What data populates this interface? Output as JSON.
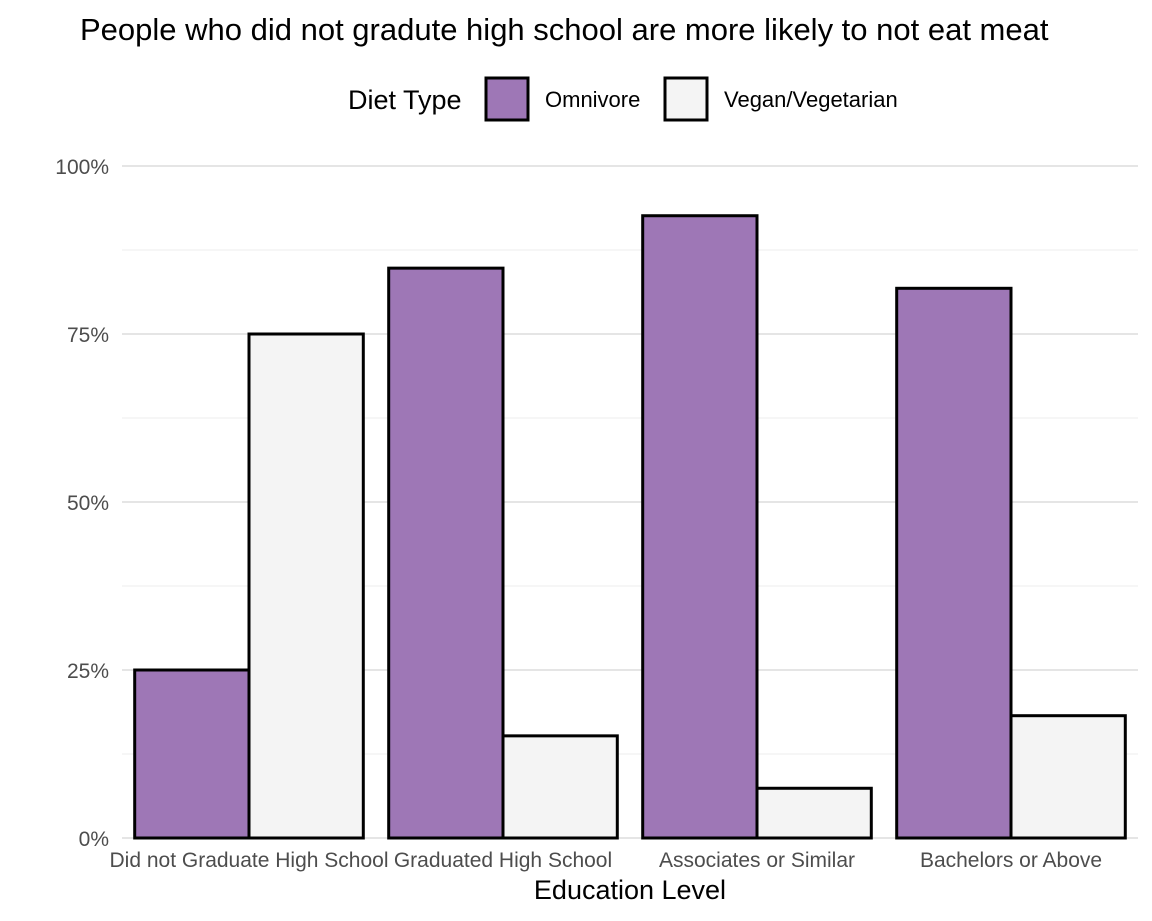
{
  "chart_data": {
    "type": "bar",
    "title": "People who did not gradute high school are more likely to not eat meat",
    "xlabel": "Education Level",
    "ylabel": "",
    "ylim": [
      0,
      1
    ],
    "yticks": [
      0,
      0.25,
      0.5,
      0.75,
      1.0
    ],
    "ytick_labels": [
      "0%",
      "25%",
      "50%",
      "75%",
      "100%"
    ],
    "categories": [
      "Did not Graduate High School",
      "Graduated High School",
      "Associates or Similar",
      "Bachelors or Above"
    ],
    "legend_title": "Diet Type",
    "legend_position": "top",
    "grid": true,
    "series": [
      {
        "name": "Omnivore",
        "color": "#9e77b6",
        "values": [
          0.25,
          0.848,
          0.926,
          0.818
        ]
      },
      {
        "name": "Vegan/Vegetarian",
        "color": "#f4f4f4",
        "values": [
          0.75,
          0.152,
          0.074,
          0.182
        ]
      }
    ]
  }
}
